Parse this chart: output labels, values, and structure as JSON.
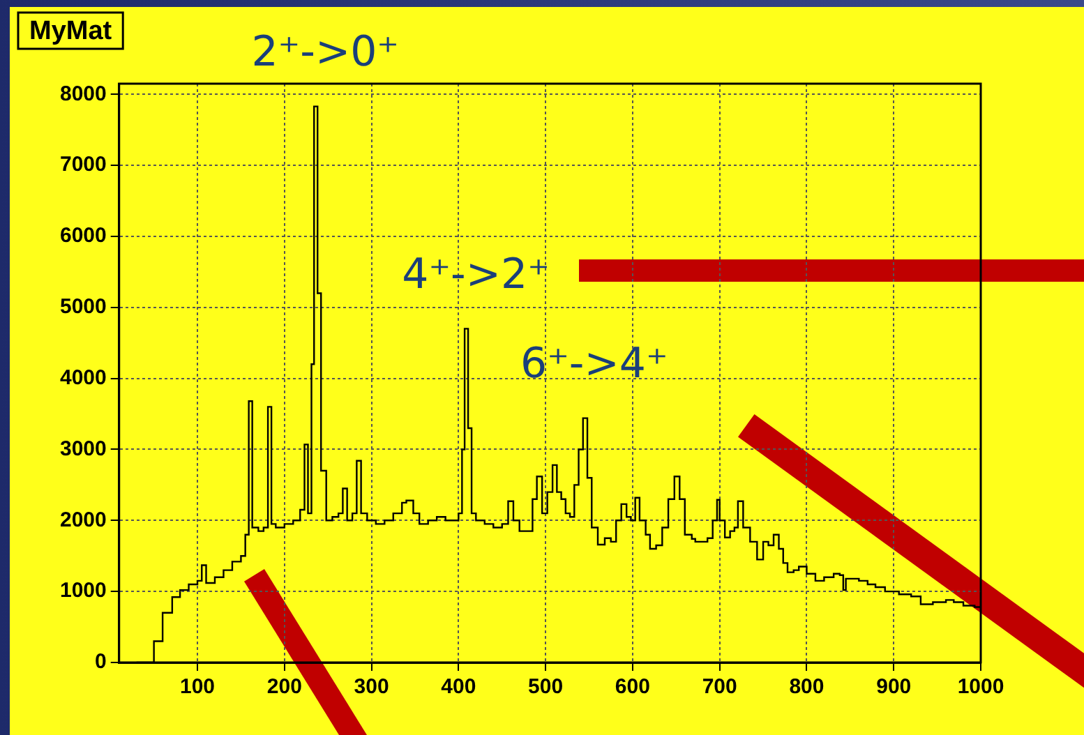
{
  "chart_data": {
    "type": "step",
    "title": "MyMat",
    "color": "#000000",
    "grid": true,
    "x": [
      30,
      40,
      50,
      60,
      71,
      80,
      90,
      100,
      105,
      110,
      120,
      130,
      140,
      150,
      155,
      159,
      163,
      170,
      176,
      181,
      185,
      190,
      200,
      210,
      218,
      223,
      227,
      231,
      234,
      238,
      242,
      248,
      255,
      262,
      267,
      272,
      278,
      283,
      288,
      295,
      305,
      315,
      325,
      335,
      340,
      348,
      355,
      365,
      375,
      385,
      395,
      400,
      404,
      407,
      411,
      415,
      420,
      430,
      440,
      450,
      457,
      463,
      470,
      478,
      485,
      490,
      496,
      502,
      508,
      513,
      518,
      523,
      528,
      533,
      538,
      543,
      548,
      553,
      560,
      568,
      575,
      581,
      587,
      593,
      598,
      603,
      608,
      615,
      620,
      627,
      634,
      641,
      648,
      654,
      660,
      668,
      672,
      680,
      686,
      692,
      697,
      700,
      706,
      712,
      717,
      721,
      727,
      735,
      743,
      750,
      756,
      762,
      768,
      773,
      778,
      785,
      791,
      800,
      810,
      820,
      831,
      838,
      842,
      845,
      852,
      860,
      870,
      879,
      890,
      906,
      920,
      931,
      945,
      960,
      969,
      980,
      993,
      1000
    ],
    "values": [
      0,
      0,
      300,
      700,
      920,
      1020,
      1100,
      1150,
      1370,
      1120,
      1200,
      1300,
      1420,
      1500,
      1800,
      3680,
      1900,
      1850,
      1900,
      3600,
      1950,
      1900,
      1950,
      2000,
      2150,
      3070,
      2100,
      4200,
      7830,
      5200,
      2700,
      2000,
      2050,
      2100,
      2450,
      2000,
      2100,
      2840,
      2100,
      2000,
      1950,
      2000,
      2100,
      2250,
      2280,
      2100,
      1950,
      2000,
      2050,
      2000,
      2000,
      2100,
      3000,
      4700,
      3300,
      2100,
      2000,
      1950,
      1900,
      1950,
      2270,
      2000,
      1850,
      1850,
      2300,
      2620,
      2100,
      2400,
      2780,
      2400,
      2300,
      2100,
      2050,
      2500,
      3000,
      3440,
      2600,
      1900,
      1660,
      1750,
      1700,
      2000,
      2230,
      2050,
      2000,
      2320,
      2000,
      1800,
      1600,
      1650,
      1900,
      2300,
      2620,
      2300,
      1800,
      1740,
      1700,
      1700,
      1750,
      2000,
      2290,
      2000,
      1760,
      1850,
      1900,
      2270,
      1900,
      1700,
      1450,
      1700,
      1650,
      1800,
      1600,
      1400,
      1270,
      1300,
      1350,
      1250,
      1150,
      1200,
      1250,
      1230,
      1020,
      1180,
      1180,
      1150,
      1100,
      1060,
      1000,
      960,
      930,
      820,
      850,
      880,
      850,
      800,
      780,
      760
    ],
    "xlim": [
      10,
      1000
    ],
    "ylim": [
      0,
      8150
    ],
    "xticks": [
      100,
      200,
      300,
      400,
      500,
      600,
      700,
      800,
      900,
      1000
    ],
    "yticks": [
      0,
      1000,
      2000,
      3000,
      4000,
      5000,
      6000,
      7000,
      8000
    ],
    "annotations": [
      {
        "text": "2⁺->0⁺",
        "x": 234,
        "y": 7830
      },
      {
        "text": "4⁺->2⁺",
        "x": 407,
        "y": 4700
      },
      {
        "text": "6⁺->4⁺",
        "x": 543,
        "y": 3440
      }
    ]
  }
}
